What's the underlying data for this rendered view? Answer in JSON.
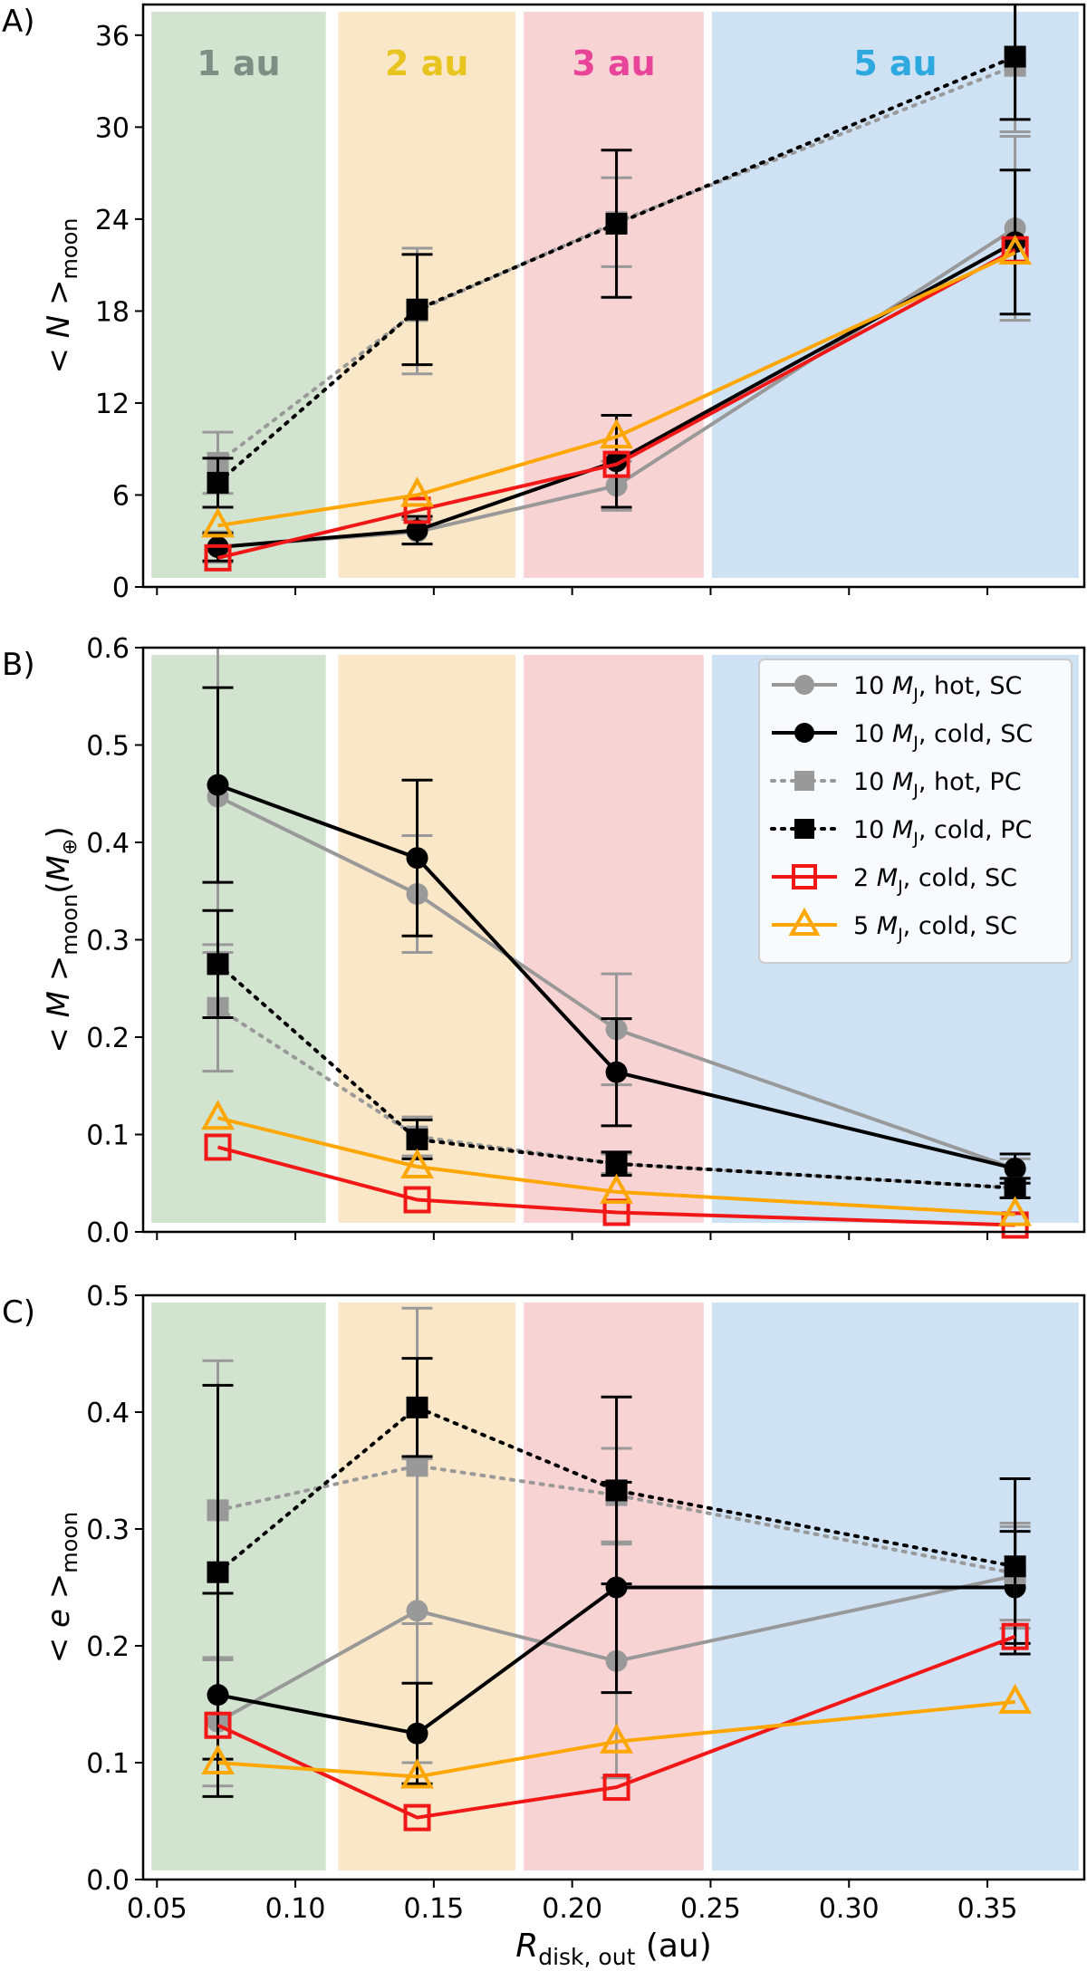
{
  "chart_data": [
    {
      "type": "line",
      "panel_letter": "A)",
      "ylabel": {
        "pre": "< ",
        "var": "N",
        "post": " >",
        "sub": "moon"
      },
      "ylim": [
        0,
        38
      ],
      "yticks": [
        0,
        6,
        12,
        18,
        24,
        30,
        36
      ],
      "ytick_labels": [
        "0",
        "6",
        "12",
        "18",
        "24",
        "30",
        "36"
      ],
      "xlim": [
        0.045,
        0.385
      ],
      "show_xtick_labels": false,
      "region_labels": [
        "1 au",
        "2 au",
        "3 au",
        "5 au"
      ],
      "series": [
        {
          "name": "10 MJ, hot, SC",
          "x": [
            0.072,
            0.144,
            0.216,
            0.36
          ],
          "values": [
            2.6,
            3.6,
            6.6,
            23.4
          ],
          "err": [
            1.0,
            0.8,
            1.6,
            6.0
          ]
        },
        {
          "name": "10 MJ, cold, SC",
          "x": [
            0.072,
            0.144,
            0.216,
            0.36
          ],
          "values": [
            2.6,
            3.7,
            8.2,
            22.5
          ],
          "err": [
            0.9,
            0.9,
            3.0,
            4.7
          ]
        },
        {
          "name": "10 MJ, hot, PC",
          "x": [
            0.072,
            0.144,
            0.216,
            0.36
          ],
          "values": [
            8.1,
            18.0,
            23.8,
            34.0
          ],
          "err": [
            2.0,
            4.1,
            2.9,
            4.3
          ]
        },
        {
          "name": "10 MJ, cold, PC",
          "x": [
            0.072,
            0.144,
            0.216,
            0.36
          ],
          "values": [
            6.8,
            18.1,
            23.7,
            34.6
          ],
          "err": [
            1.6,
            3.6,
            4.8,
            4.1
          ]
        },
        {
          "name": "2 MJ, cold, SC",
          "x": [
            0.072,
            0.144,
            0.216,
            0.36
          ],
          "values": [
            1.9,
            5.0,
            8.0,
            22.0
          ],
          "err": [
            0,
            0,
            0,
            0
          ]
        },
        {
          "name": "5 MJ, cold, SC",
          "x": [
            0.072,
            0.144,
            0.216,
            0.36
          ],
          "values": [
            4.0,
            6.0,
            9.8,
            21.8
          ],
          "err": [
            0,
            0,
            0,
            0
          ]
        }
      ]
    },
    {
      "type": "line",
      "panel_letter": "B)",
      "ylabel": {
        "pre": "< ",
        "var": "M",
        "post": " >",
        "sub": "moon",
        "unit_pre": "(",
        "unit_var": "M",
        "unit_sub": "⊕",
        "unit_post": ")"
      },
      "ylim": [
        0,
        0.6
      ],
      "yticks": [
        0,
        0.1,
        0.2,
        0.3,
        0.4,
        0.5,
        0.6
      ],
      "ytick_labels": [
        "0.0",
        "0.1",
        "0.2",
        "0.3",
        "0.4",
        "0.5",
        "0.6"
      ],
      "xlim": [
        0.045,
        0.385
      ],
      "show_xtick_labels": false,
      "legend_position": "upper-right",
      "series": [
        {
          "name": "10 MJ, hot, SC",
          "x": [
            0.072,
            0.144,
            0.216,
            0.36
          ],
          "values": [
            0.447,
            0.347,
            0.208,
            0.065
          ],
          "err": [
            0.16,
            0.06,
            0.057,
            0.01
          ]
        },
        {
          "name": "10 MJ, cold, SC",
          "x": [
            0.072,
            0.144,
            0.216,
            0.36
          ],
          "values": [
            0.459,
            0.384,
            0.164,
            0.065
          ],
          "err": [
            0.1,
            0.08,
            0.055,
            0.015
          ]
        },
        {
          "name": "10 MJ, hot, PC",
          "x": [
            0.072,
            0.144,
            0.216,
            0.36
          ],
          "values": [
            0.23,
            0.098,
            0.07,
            0.045
          ],
          "err": [
            0.065,
            0.02,
            0.01,
            0.01
          ]
        },
        {
          "name": "10 MJ, cold, PC",
          "x": [
            0.072,
            0.144,
            0.216,
            0.36
          ],
          "values": [
            0.275,
            0.095,
            0.07,
            0.045
          ],
          "err": [
            0.055,
            0.02,
            0.012,
            0.01
          ]
        },
        {
          "name": "2 MJ, cold, SC",
          "x": [
            0.072,
            0.144,
            0.216,
            0.36
          ],
          "values": [
            0.087,
            0.033,
            0.02,
            0.007
          ],
          "err": [
            0,
            0,
            0,
            0
          ]
        },
        {
          "name": "5 MJ, cold, SC",
          "x": [
            0.072,
            0.144,
            0.216,
            0.36
          ],
          "values": [
            0.117,
            0.067,
            0.041,
            0.018
          ],
          "err": [
            0,
            0,
            0,
            0
          ]
        }
      ],
      "legend": [
        {
          "num": "10 ",
          "var": "M",
          "sub": "J",
          "rest": ", hot, SC"
        },
        {
          "num": "10 ",
          "var": "M",
          "sub": "J",
          "rest": ", cold, SC"
        },
        {
          "num": "10 ",
          "var": "M",
          "sub": "J",
          "rest": ", hot, PC"
        },
        {
          "num": "10 ",
          "var": "M",
          "sub": "J",
          "rest": ", cold, PC"
        },
        {
          "num": "2 ",
          "var": "M",
          "sub": "J",
          "rest": ", cold, SC"
        },
        {
          "num": "5 ",
          "var": "M",
          "sub": "J",
          "rest": ", cold, SC"
        }
      ]
    },
    {
      "type": "line",
      "panel_letter": "C)",
      "ylabel": {
        "pre": "< ",
        "var": "e",
        "post": " >",
        "sub": "moon"
      },
      "ylim": [
        0,
        0.5
      ],
      "yticks": [
        0,
        0.1,
        0.2,
        0.3,
        0.4,
        0.5
      ],
      "ytick_labels": [
        "0.0",
        "0.1",
        "0.2",
        "0.3",
        "0.4",
        "0.5"
      ],
      "xlim": [
        0.045,
        0.385
      ],
      "show_xtick_labels": true,
      "xticks": [
        0.05,
        0.1,
        0.15,
        0.2,
        0.25,
        0.3,
        0.35
      ],
      "xtick_labels": [
        "0.05",
        "0.10",
        "0.15",
        "0.20",
        "0.25",
        "0.30",
        "0.35"
      ],
      "xlabel": {
        "var": "R",
        "sub": "disk, out",
        "post": " (au)"
      },
      "series": [
        {
          "name": "10 MJ, hot, SC",
          "x": [
            0.072,
            0.144,
            0.216,
            0.36
          ],
          "values": [
            0.135,
            0.23,
            0.187,
            0.26
          ],
          "err": [
            0.055,
            0.13,
            0.1,
            0.045
          ]
        },
        {
          "name": "10 MJ, cold, SC",
          "x": [
            0.072,
            0.144,
            0.216,
            0.36
          ],
          "values": [
            0.158,
            0.125,
            0.25,
            0.25
          ],
          "err": [
            0.087,
            0.043,
            0.09,
            0.048
          ]
        },
        {
          "name": "10 MJ, hot, PC",
          "x": [
            0.072,
            0.144,
            0.216,
            0.36
          ],
          "values": [
            0.316,
            0.354,
            0.329,
            0.262
          ],
          "err": [
            0.128,
            0.135,
            0.04,
            0.04
          ]
        },
        {
          "name": "10 MJ, cold, PC",
          "x": [
            0.072,
            0.144,
            0.216,
            0.36
          ],
          "values": [
            0.263,
            0.404,
            0.333,
            0.268
          ],
          "err": [
            0.16,
            0.042,
            0.08,
            0.075
          ]
        },
        {
          "name": "2 MJ, cold, SC",
          "x": [
            0.072,
            0.144,
            0.216,
            0.36
          ],
          "values": [
            0.132,
            0.053,
            0.079,
            0.208
          ],
          "err": [
            0,
            0,
            0,
            0
          ]
        },
        {
          "name": "5 MJ, cold, SC",
          "x": [
            0.072,
            0.144,
            0.216,
            0.36
          ],
          "values": [
            0.1,
            0.088,
            0.118,
            0.152
          ],
          "err": [
            0,
            0,
            0,
            0
          ]
        }
      ]
    }
  ],
  "regions": [
    {
      "label": "1 au",
      "x0": 0.048,
      "x1": 0.111,
      "color": "#d2e4cf",
      "label_color": "#7d8f85"
    },
    {
      "label": "2 au",
      "x0": 0.1155,
      "x1": 0.1795,
      "color": "#f9e7c7",
      "label_color": "#e8c41e"
    },
    {
      "label": "3 au",
      "x0": 0.1825,
      "x1": 0.2475,
      "color": "#f8d3d3",
      "label_color": "#e8459a"
    },
    {
      "label": "5 au",
      "x0": 0.2505,
      "x1": 0.383,
      "color": "#cfe2f4",
      "label_color": "#2ea9df"
    }
  ],
  "series_styles": [
    {
      "color": "#999999",
      "marker": "circle",
      "dash": "solid",
      "filled": true
    },
    {
      "color": "#000000",
      "marker": "circle",
      "dash": "solid",
      "filled": true
    },
    {
      "color": "#999999",
      "marker": "square",
      "dash": "dotted",
      "filled": true
    },
    {
      "color": "#000000",
      "marker": "square",
      "dash": "dotted",
      "filled": true
    },
    {
      "color": "#f21717",
      "marker": "square",
      "dash": "solid",
      "filled": false
    },
    {
      "color": "#ffa600",
      "marker": "triangle",
      "dash": "solid",
      "filled": false
    }
  ]
}
